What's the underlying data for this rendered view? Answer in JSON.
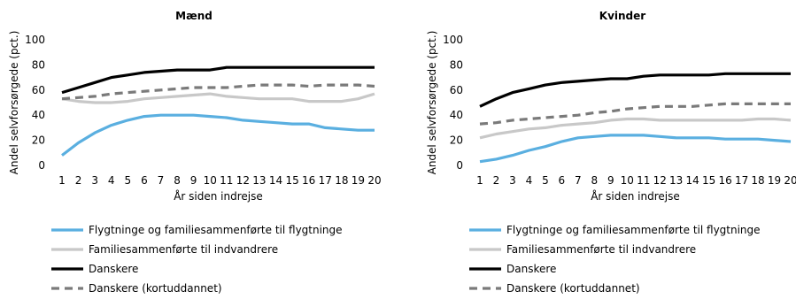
{
  "chart_data": [
    {
      "type": "line",
      "title": "Mænd",
      "xlabel": "År siden indrejse",
      "ylabel": "Andel selvforsørgede (pct.)",
      "ylim": [
        0,
        100
      ],
      "yticks": [
        0,
        20,
        40,
        60,
        80,
        100
      ],
      "x": [
        1,
        2,
        3,
        4,
        5,
        6,
        7,
        8,
        9,
        10,
        11,
        12,
        13,
        14,
        15,
        16,
        17,
        18,
        19,
        20
      ],
      "grid": false,
      "series": [
        {
          "name": "Flygtninge og familiesammenførte til flygtninge",
          "color": "#5aafe0",
          "values": [
            8,
            18,
            26,
            32,
            36,
            39,
            40,
            40,
            40,
            39,
            38,
            36,
            35,
            34,
            33,
            33,
            30,
            29,
            28,
            28
          ]
        },
        {
          "name": "Familiesammenførte til indvandrere",
          "color": "#c8c8c8",
          "values": [
            53,
            51,
            50,
            50,
            51,
            53,
            54,
            55,
            56,
            57,
            55,
            54,
            53,
            53,
            53,
            51,
            51,
            51,
            53,
            57
          ]
        },
        {
          "name": "Danskere",
          "color": "#000000",
          "values": [
            58,
            62,
            66,
            70,
            72,
            74,
            75,
            76,
            76,
            76,
            78,
            78,
            78,
            78,
            78,
            78,
            78,
            78,
            78,
            78
          ]
        },
        {
          "name": "Danskere (kortuddannet)",
          "color": "#7a7a7a",
          "dashed": true,
          "values": [
            53,
            54,
            55,
            57,
            58,
            59,
            60,
            61,
            62,
            62,
            62,
            63,
            64,
            64,
            64,
            63,
            64,
            64,
            64,
            63
          ]
        }
      ]
    },
    {
      "type": "line",
      "title": "Kvinder",
      "xlabel": "År siden indrejse",
      "ylabel": "Andel selvforsørgede (pct.)",
      "ylim": [
        0,
        100
      ],
      "yticks": [
        0,
        20,
        40,
        60,
        80,
        100
      ],
      "x": [
        1,
        2,
        3,
        4,
        5,
        6,
        7,
        8,
        9,
        10,
        11,
        12,
        13,
        14,
        15,
        16,
        17,
        18,
        19,
        20
      ],
      "grid": false,
      "series": [
        {
          "name": "Flygtninge og familiesammenførte til flygtninge",
          "color": "#5aafe0",
          "values": [
            3,
            5,
            8,
            12,
            15,
            19,
            22,
            23,
            24,
            24,
            24,
            23,
            22,
            22,
            22,
            21,
            21,
            21,
            20,
            19
          ]
        },
        {
          "name": "Familiesammenførte til indvandrere",
          "color": "#c8c8c8",
          "values": [
            22,
            25,
            27,
            29,
            30,
            32,
            33,
            34,
            36,
            37,
            37,
            36,
            36,
            36,
            36,
            36,
            36,
            37,
            37,
            36
          ]
        },
        {
          "name": "Danskere",
          "color": "#000000",
          "values": [
            47,
            53,
            58,
            61,
            64,
            66,
            67,
            68,
            69,
            69,
            71,
            72,
            72,
            72,
            72,
            73,
            73,
            73,
            73,
            73
          ]
        },
        {
          "name": "Danskere (kortuddannet)",
          "color": "#7a7a7a",
          "dashed": true,
          "values": [
            33,
            34,
            36,
            37,
            38,
            39,
            40,
            42,
            43,
            45,
            46,
            47,
            47,
            47,
            48,
            49,
            49,
            49,
            49,
            49
          ]
        }
      ]
    }
  ]
}
